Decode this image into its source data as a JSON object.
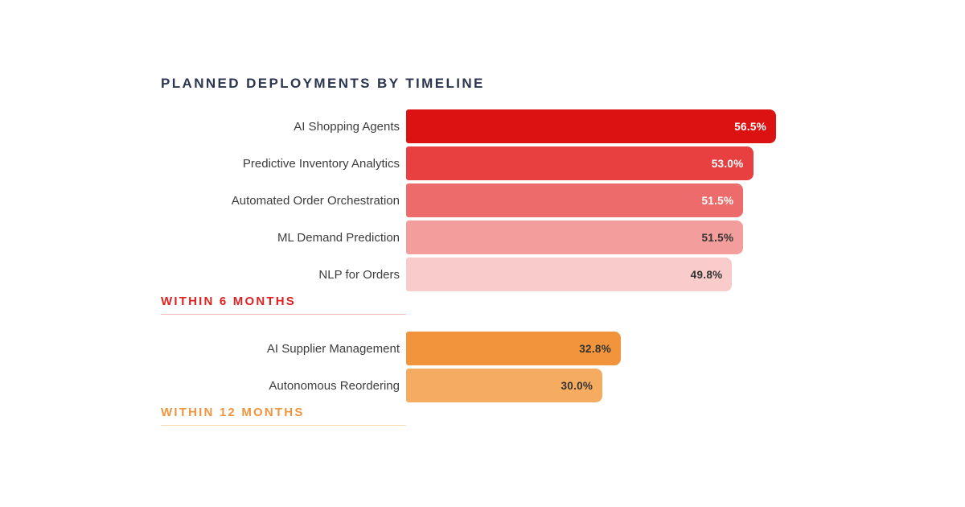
{
  "title": "PLANNED DEPLOYMENTS BY TIMELINE",
  "colors": {
    "background": "#ffffff",
    "title_text": "#2b3550",
    "row_label_text": "#3d3d3d",
    "dark_value_text": "#333333",
    "white_value_text": "#ffffff"
  },
  "chart_data": {
    "type": "bar",
    "orientation": "horizontal",
    "title": "PLANNED DEPLOYMENTS BY TIMELINE",
    "unit": "%",
    "xlim": [
      0,
      56.5
    ],
    "grid": false,
    "value_label_position": "inside-end",
    "groups": [
      {
        "label": "WITHIN 6 MONTHS",
        "accent_color": "#dd2222",
        "underline_color": "#f3b8b8",
        "items": [
          {
            "label": "AI Shopping Agents",
            "value": 56.5,
            "display": "56.5%",
            "bar_color": "#dc1212",
            "value_color": "#ffffff"
          },
          {
            "label": "Predictive Inventory Analytics",
            "value": 53.0,
            "display": "53.0%",
            "bar_color": "#e84040",
            "value_color": "#ffffff"
          },
          {
            "label": "Automated Order Orchestration",
            "value": 51.5,
            "display": "51.5%",
            "bar_color": "#ed6b6b",
            "value_color": "#ffffff"
          },
          {
            "label": "ML Demand Prediction",
            "value": 51.5,
            "display": "51.5%",
            "bar_color": "#f49d9d",
            "value_color": "#333333"
          },
          {
            "label": "NLP for Orders",
            "value": 49.8,
            "display": "49.8%",
            "bar_color": "#f9cbcb",
            "value_color": "#333333"
          }
        ]
      },
      {
        "label": "WITHIN 12 MONTHS",
        "accent_color": "#f0953f",
        "underline_color": "#f9d9ae",
        "items": [
          {
            "label": "AI Supplier Management",
            "value": 32.8,
            "display": "32.8%",
            "bar_color": "#f1943b",
            "value_color": "#333333"
          },
          {
            "label": "Autonomous Reordering",
            "value": 30.0,
            "display": "30.0%",
            "bar_color": "#f6ac60",
            "value_color": "#333333"
          }
        ]
      }
    ]
  }
}
